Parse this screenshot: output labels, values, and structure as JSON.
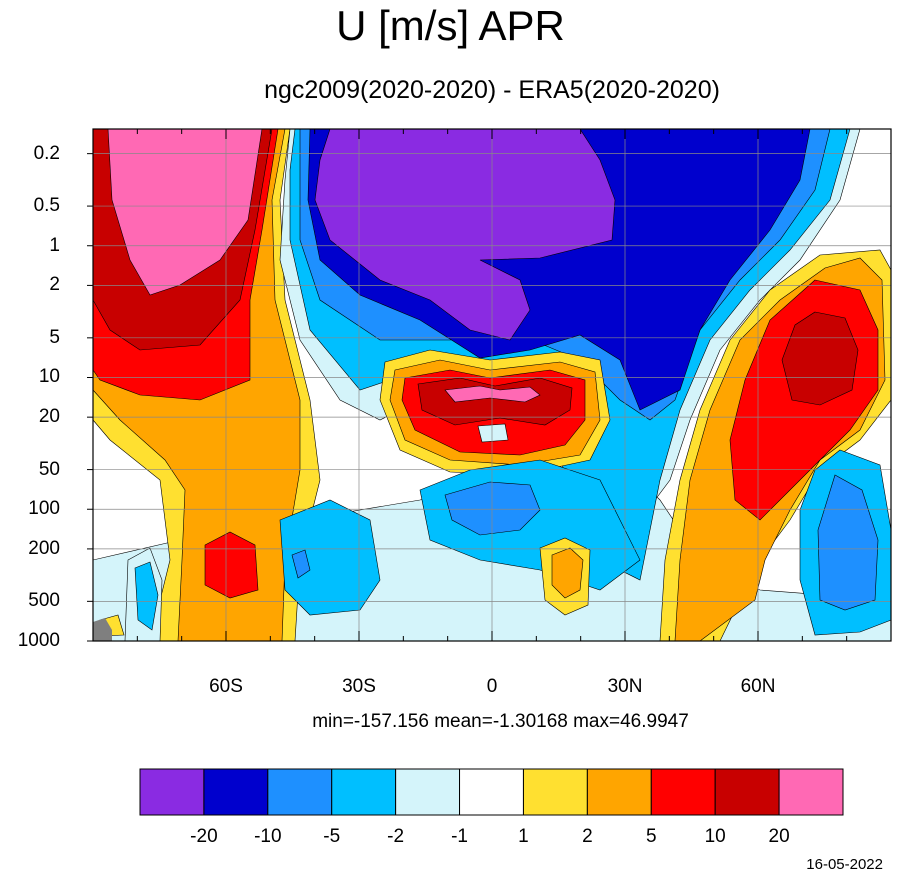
{
  "title": "U [m/s] APR",
  "subtitle": "ngc2009(2020-2020) - ERA5(2020-2020)",
  "stats": "min=-157.156   mean=-1.30168   max=46.9947",
  "date": "16-05-2022",
  "y_ticks": [
    "0.2",
    "0.5",
    "1",
    "2",
    "5",
    "10",
    "20",
    "50",
    "100",
    "200",
    "500",
    "1000"
  ],
  "x_ticks": [
    "60S",
    "30S",
    "0",
    "30N",
    "60N"
  ],
  "colorbar": {
    "colors": [
      "#8a2be2",
      "#0000cd",
      "#1e90ff",
      "#00bfff",
      "#d4f4fa",
      "#ffffff",
      "#ffe030",
      "#ffa500",
      "#ff0000",
      "#c80000",
      "#ff69b4"
    ],
    "labels": [
      "-20",
      "-10",
      "-5",
      "-2",
      "-1",
      "1",
      "2",
      "5",
      "10",
      "20"
    ]
  },
  "chart_data": {
    "type": "heatmap",
    "title": "U [m/s] APR",
    "subtitle": "ngc2009(2020-2020) - ERA5(2020-2020)",
    "x_axis": {
      "label": "",
      "ticks": [
        "60S",
        "30S",
        "0",
        "30N",
        "60N"
      ],
      "range": [
        -90,
        90
      ],
      "units": "degrees latitude"
    },
    "y_axis": {
      "label": "",
      "ticks": [
        0.2,
        0.5,
        1,
        2,
        5,
        10,
        20,
        50,
        100,
        200,
        500,
        1000
      ],
      "scale": "log",
      "reversed": true,
      "range": [
        1000,
        0.1
      ]
    },
    "levels": [
      -20,
      -10,
      -5,
      -2,
      -1,
      1,
      2,
      5,
      10,
      20
    ],
    "statistics": {
      "min": -157.156,
      "mean": -1.30168,
      "max": 46.9947
    },
    "grid": true,
    "features": [
      {
        "region": "southern high latitudes, upper levels",
        "value_class": ">20",
        "lat_range": [
          -90,
          -52
        ],
        "pressure_range": [
          0.1,
          2
        ]
      },
      {
        "region": "southern high latitudes, mid levels",
        "value_class": "5 to 20",
        "lat_range": [
          -90,
          -45
        ],
        "pressure_range": [
          0.1,
          1000
        ]
      },
      {
        "region": "tropics and northern subtropics, upper levels",
        "value_class": "<-20",
        "lat_range": [
          -40,
          30
        ],
        "pressure_range": [
          0.1,
          5
        ]
      },
      {
        "region": "equatorial stratosphere",
        "value_class": ">20",
        "lat_range": [
          -10,
          10
        ],
        "pressure_range": [
          10,
          15
        ]
      },
      {
        "region": "northern high latitudes, mid levels",
        "value_class": "10 to 20",
        "lat_range": [
          65,
          85
        ],
        "pressure_range": [
          5,
          30
        ]
      },
      {
        "region": "northern polar troposphere",
        "value_class": "-5 to -2",
        "lat_range": [
          75,
          88
        ],
        "pressure_range": [
          60,
          1000
        ]
      }
    ]
  }
}
